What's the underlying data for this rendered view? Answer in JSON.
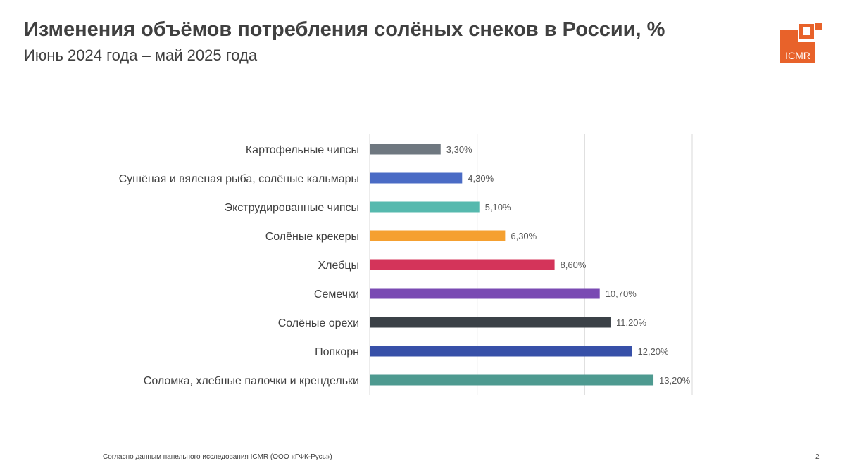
{
  "header": {
    "title": "Изменения объёмов потребления солёных снеков в России, %",
    "subtitle": "Июнь 2024 года – май 2025 года"
  },
  "logo": {
    "text": "ICMR",
    "color": "#E8622A"
  },
  "chart_data": {
    "type": "bar",
    "orientation": "horizontal",
    "categories": [
      "Картофельные чипсы",
      "Сушёная и вяленая рыба, солёные кальмары",
      "Экструдированные чипсы",
      "Солёные крекеры",
      "Хлебцы",
      "Семечки",
      "Солёные орехи",
      "Попкорн",
      "Соломка, хлебные палочки и крендельки"
    ],
    "values": [
      3.3,
      4.3,
      5.1,
      6.3,
      8.6,
      10.7,
      11.2,
      12.2,
      13.2
    ],
    "value_labels": [
      "3,30%",
      "4,30%",
      "5,10%",
      "6,30%",
      "8,60%",
      "10,70%",
      "11,20%",
      "12,20%",
      "13,20%"
    ],
    "colors": [
      "#6F7880",
      "#4A6BC5",
      "#56B9AE",
      "#F5A030",
      "#D4345A",
      "#7A4AB3",
      "#3B4147",
      "#3750A8",
      "#4E9A90"
    ],
    "xlim": [
      0,
      15
    ],
    "grid": true,
    "legend": "none",
    "title": "",
    "xlabel": "",
    "ylabel": ""
  },
  "footer": {
    "note": "Согласно данным панельного исследования ICMR (ООО «ГФК-Русь»)",
    "page_number": "2"
  }
}
